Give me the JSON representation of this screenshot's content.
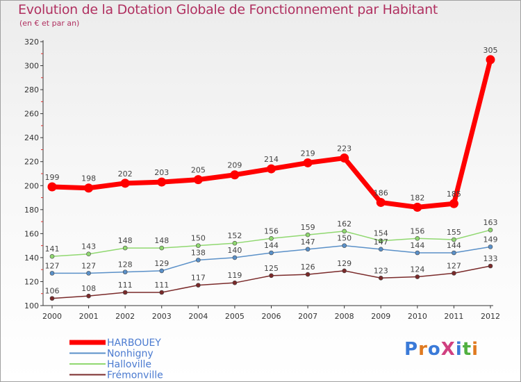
{
  "header": {
    "title": "Evolution de la Dotation Globale de Fonctionnement par Habitant",
    "subtitle": "(en € et par an)"
  },
  "logo": {
    "text": "ProXiti",
    "colors": [
      "#3a7ad8",
      "#e07a20",
      "#3a7ad8",
      "#d04080",
      "#3a7ad8",
      "#50b040",
      "#e07a20"
    ]
  },
  "chart_data": {
    "type": "line",
    "title": "Evolution de la Dotation Globale de Fonctionnement par Habitant",
    "subtitle": "(en € et par an)",
    "xlabel": "",
    "ylabel": "",
    "x": [
      "2000",
      "2001",
      "2002",
      "2003",
      "2004",
      "2005",
      "2006",
      "2007",
      "2008",
      "2009",
      "2010",
      "2011",
      "2012"
    ],
    "ylim": [
      100,
      320
    ],
    "yticks": [
      100,
      120,
      140,
      160,
      180,
      200,
      220,
      240,
      260,
      280,
      300,
      320
    ],
    "grid": false,
    "legend_position": "bottom-left",
    "series": [
      {
        "name": "HARBOUEY",
        "color": "#ff0000",
        "values": [
          199,
          198,
          202,
          203,
          205,
          209,
          214,
          219,
          223,
          186,
          182,
          185,
          305
        ]
      },
      {
        "name": "Nonhigny",
        "color": "#5a90c8",
        "values": [
          127,
          127,
          128,
          129,
          138,
          140,
          144,
          147,
          150,
          147,
          144,
          144,
          149
        ]
      },
      {
        "name": "Halloville",
        "color": "#90d870",
        "values": [
          141,
          143,
          148,
          148,
          150,
          152,
          156,
          159,
          162,
          154,
          156,
          155,
          163
        ]
      },
      {
        "name": "Frémonville",
        "color": "#7a2a2a",
        "values": [
          106,
          108,
          111,
          111,
          117,
          119,
          125,
          126,
          129,
          123,
          124,
          127,
          133
        ]
      }
    ]
  }
}
